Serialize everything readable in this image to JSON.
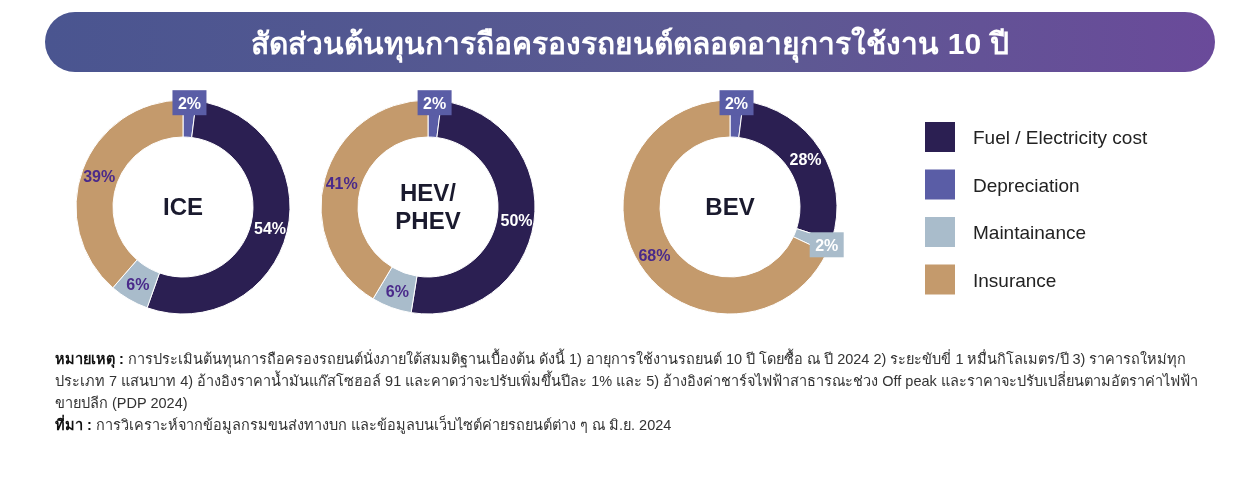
{
  "chart_data": [
    {
      "type": "donut",
      "annotations": [
        "ICE"
      ],
      "categories": [
        null,
        null,
        null,
        null
      ],
      "values": [
        54,
        2,
        6,
        39
      ],
      "colors": [
        "#2b1f52",
        "#5a5da6",
        "#a9bccb",
        "#c49a6c"
      ],
      "value_labels": [
        "54%",
        "2%",
        "6%",
        "39%"
      ]
    },
    {
      "type": "donut",
      "annotations": [
        "HEV/PHEV"
      ],
      "categories": [
        null,
        null,
        null,
        null
      ],
      "values": [
        50,
        2,
        6,
        41
      ],
      "colors": [
        "#2b1f52",
        "#5a5da6",
        "#a9bccb",
        "#c49a6c"
      ],
      "value_labels": [
        "50%",
        "2%",
        "6%",
        "41%"
      ]
    },
    {
      "type": "donut",
      "title": "สัดส่วนต้นทุนการถือครองรถยนต์ตลอดอายุการใช้งาน 10 ปี",
      "annotations": [
        "BEV",
        "หมายเหตุ : การประเมินต้นทุนการถือครองรถยนต์นั่งภายใต้สมมติฐานเบื้องต้น ดังนี้ 1) อายุการใช้งานรถยนต์ 10 ปี โดยซื้อ ณ ปี 2024 2) ระยะขับขี่ 1 หมื่นกิโลเมตร/ปี 3) ราคารถใหม่ทุกประเภท 7 แสนบาท 4) อ้างอิงราคาน้ำมันแก๊สโซฮอล์ 91 และคาดว่าจะปรับเพิ่มขึ้นปีละ 1% และ 5) อ้างอิงค่าชาร์จไฟฟ้าสาธารณะช่วง Off peak และราคาจะปรับเปลี่ยนตามอัตราค่าไฟฟ้าขายปลีก (PDP 2024)",
        "ที่มา : การวิเคราะห์จากข้อมูลกรมขนส่งทางบก และข้อมูลบนเว็บไซต์ค่ายรถยนต์ต่าง ๆ ณ มิ.ย. 2024"
      ],
      "categories": [
        "Fuel / Electricity cost",
        "Depreciation",
        "Maintainance",
        "Insurance"
      ],
      "values": [
        28,
        2,
        2,
        68
      ],
      "colors": [
        "#2b1f52",
        "#5a5da6",
        "#a9bccb",
        "#c49a6c"
      ],
      "value_labels": [
        "28%",
        "2%",
        "2%",
        "68%"
      ],
      "legend": "right"
    }
  ]
}
